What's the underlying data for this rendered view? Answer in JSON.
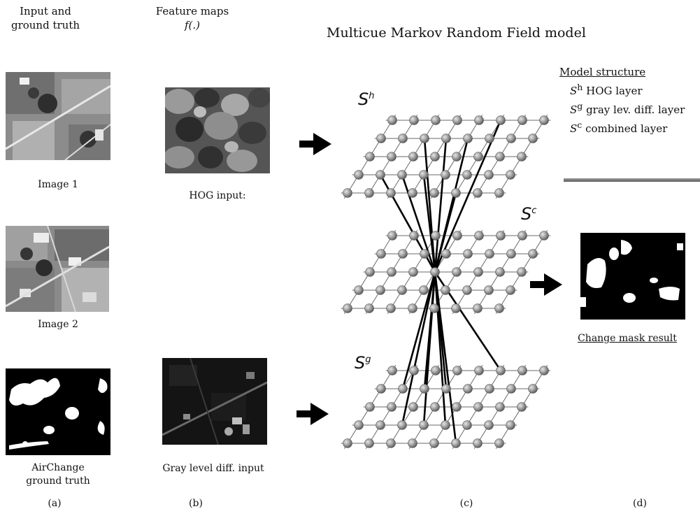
{
  "headers": {
    "col_a": [
      "Input and",
      "ground truth"
    ],
    "col_b": [
      "Feature maps",
      "f(.)"
    ],
    "title": "Multicue Markov Random Field model"
  },
  "captions": {
    "image1": "Image 1",
    "image2": "Image 2",
    "ground_truth": [
      "AirChange",
      "ground truth"
    ],
    "hog_input": "HOG input:",
    "gray_input": "Gray level diff. input",
    "change_mask": "Change mask result"
  },
  "panel_labels": [
    "(a)",
    "(b)",
    "(c)",
    "(d)"
  ],
  "model_structure": {
    "heading": "Model structure",
    "rows": [
      {
        "sym": "S",
        "sup": "h",
        "text": " HOG layer"
      },
      {
        "sym": "S",
        "sup": "g",
        "text": " gray lev. diff. layer"
      },
      {
        "sym": "S",
        "sup": "c",
        "text": " combined layer"
      }
    ]
  },
  "layers": [
    {
      "sym": "S",
      "sup": "h"
    },
    {
      "sym": "S",
      "sup": "c"
    },
    {
      "sym": "S",
      "sup": "g"
    }
  ],
  "colors": {
    "node": "#9a9a9a",
    "grid": "#6a6a6a",
    "arrow": "#000000"
  }
}
